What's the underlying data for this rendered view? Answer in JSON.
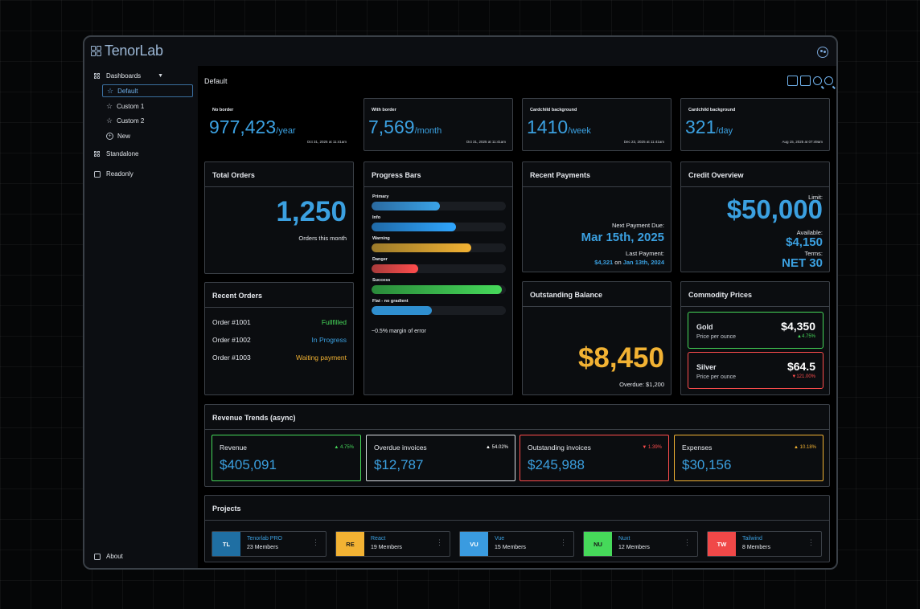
{
  "app": {
    "logo_text": "TenorLab"
  },
  "sidebar": {
    "dashboards_label": "Dashboards",
    "items": [
      {
        "label": "Default"
      },
      {
        "label": "Custom 1"
      },
      {
        "label": "Custom 2"
      },
      {
        "label": "New"
      }
    ],
    "standalone_label": "Standalone",
    "readonly_label": "Readonly",
    "about_label": "About"
  },
  "main": {
    "title": "Default"
  },
  "stat_cards": [
    {
      "label": "No border",
      "value": "977,423",
      "unit": "/year",
      "time": "Oct 31, 2025 at 11:41am"
    },
    {
      "label": "With border",
      "value": "7,569",
      "unit": "/month",
      "time": "Oct 31, 2025 at 11:41am"
    },
    {
      "label": "Cardchild background",
      "value": "1410",
      "unit": "/week",
      "time": "Dec 23, 2025 at 11:41am"
    },
    {
      "label": "Cardchild background",
      "value": "321",
      "unit": "/day",
      "time": "Aug 15, 2025 at 07:49am"
    }
  ],
  "total_orders": {
    "title": "Total Orders",
    "value": "1,250",
    "caption": "Orders this month"
  },
  "progress_bars": {
    "title": "Progress Bars",
    "bars": [
      {
        "label": "Primary",
        "value": 0.51,
        "color_from": "#2a6aa0",
        "color_to": "#3aa3e8"
      },
      {
        "label": "Info",
        "value": 0.63,
        "color_from": "#1f6aa8",
        "color_to": "#2fa6ff"
      },
      {
        "label": "Warning",
        "value": 0.74,
        "color_from": "#9b7a2a",
        "color_to": "#f2b233"
      },
      {
        "label": "Danger",
        "value": 0.35,
        "color_from": "#a83a3a",
        "color_to": "#ff4d4d"
      },
      {
        "label": "Success",
        "value": 0.97,
        "color_from": "#2a8a3a",
        "color_to": "#46d95a"
      },
      {
        "label": "Flat - no gradient",
        "value": 0.45,
        "color_from": "#2f8fd0",
        "color_to": "#2f8fd0"
      }
    ],
    "footnote": "~0.5% margin of error"
  },
  "recent_payments": {
    "title": "Recent Payments",
    "next_label": "Next Payment Due:",
    "next_date": "Mar 15th, 2025",
    "last_label": "Last Payment:",
    "last_amount": "$4,321",
    "last_on": "on",
    "last_date": "Jan 13th, 2024"
  },
  "credit_overview": {
    "title": "Credit Overview",
    "limit_label": "Limit:",
    "limit_value": "$50,000",
    "available_label": "Available:",
    "available_value": "$4,150",
    "terms_label": "Terms:",
    "terms_value": "NET 30"
  },
  "recent_orders": {
    "title": "Recent Orders",
    "orders": [
      {
        "id": "Order #1001",
        "status": "Fullfilled",
        "color": "#46d95a"
      },
      {
        "id": "Order #1002",
        "status": "In Progress",
        "color": "#3ba0e0"
      },
      {
        "id": "Order #1003",
        "status": "Waiting payment",
        "color": "#f2b233"
      }
    ]
  },
  "outstanding_balance": {
    "title": "Outstanding Balance",
    "value": "$8,450",
    "overdue": "Overdue: $1,200"
  },
  "commodity_prices": {
    "title": "Commodity Prices",
    "items": [
      {
        "name": "Gold",
        "sub": "Price per ounce",
        "price": "$4,350",
        "change": "▲4.75%",
        "color": "#46d95a"
      },
      {
        "name": "Silver",
        "sub": "Price per ounce",
        "price": "$64.5",
        "change": "▼121.00%",
        "color": "#ff4d4d"
      }
    ]
  },
  "revenue_trends": {
    "title": "Revenue Trends (async)",
    "kpis": [
      {
        "title": "Revenue",
        "value": "$405,091",
        "change": "▲ 4.75%",
        "color": "#46d95a"
      },
      {
        "title": "Overdue invoices",
        "value": "$12,787",
        "change": "▲ 54.02%",
        "color": "#ffffff"
      },
      {
        "title": "Outstanding invoices",
        "value": "$245,988",
        "change": "▼ 1.39%",
        "color": "#ff4d4d"
      },
      {
        "title": "Expenses",
        "value": "$30,156",
        "change": "▲ 10.18%",
        "color": "#f2b233"
      }
    ]
  },
  "projects": {
    "title": "Projects",
    "items": [
      {
        "badge": "TL",
        "name": "Tenorlab PRO",
        "members": "23 Members",
        "badge_bg": "#1f6fa3",
        "badge_fg": "#ffffff"
      },
      {
        "badge": "RE",
        "name": "React",
        "members": "19 Members",
        "badge_bg": "#f2b233",
        "badge_fg": "#1a1a1a"
      },
      {
        "badge": "VU",
        "name": "Vue",
        "members": "15 Members",
        "badge_bg": "#3a9be0",
        "badge_fg": "#ffffff"
      },
      {
        "badge": "NU",
        "name": "Nuxt",
        "members": "12 Members",
        "badge_bg": "#46d95a",
        "badge_fg": "#1a1a1a"
      },
      {
        "badge": "TW",
        "name": "Tailwind",
        "members": "8 Members",
        "badge_bg": "#f04848",
        "badge_fg": "#ffffff"
      }
    ]
  }
}
